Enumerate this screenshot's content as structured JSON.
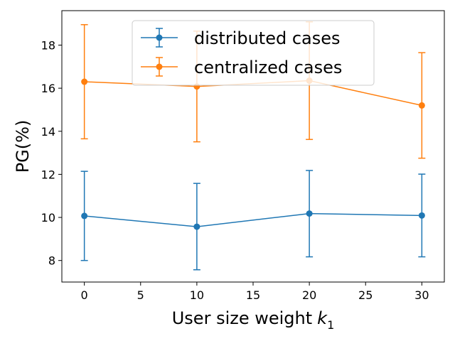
{
  "chart_data": {
    "type": "line",
    "title": "",
    "xlabel": "User size weight",
    "xlabel_symbol": "k",
    "xlabel_subscript": "1",
    "ylabel": "PG(%)",
    "xlim": [
      -2,
      32
    ],
    "ylim": [
      7.0,
      19.6
    ],
    "xticks": [
      0,
      5,
      10,
      15,
      20,
      25,
      30
    ],
    "yticks": [
      8,
      10,
      12,
      14,
      16,
      18
    ],
    "grid": false,
    "legend_position": "top-center",
    "series": [
      {
        "name": "distributed cases",
        "color": "#1f77b4",
        "x": [
          0,
          10,
          20,
          30
        ],
        "y": [
          10.07,
          9.57,
          10.18,
          10.09
        ],
        "error_low": [
          8.0,
          7.57,
          8.17,
          8.17
        ],
        "error_high": [
          12.14,
          11.58,
          12.18,
          12.01
        ]
      },
      {
        "name": "centralized cases",
        "color": "#ff7f0e",
        "x": [
          0,
          10,
          20,
          30
        ],
        "y": [
          16.3,
          16.08,
          16.35,
          15.2
        ],
        "error_low": [
          13.65,
          13.51,
          13.62,
          12.75
        ],
        "error_high": [
          18.95,
          18.65,
          19.08,
          17.65
        ]
      }
    ]
  }
}
